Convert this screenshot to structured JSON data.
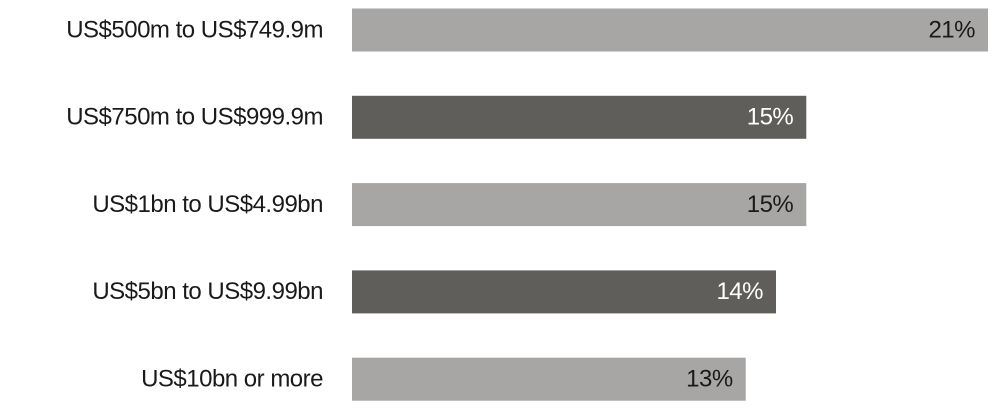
{
  "chart_data": {
    "type": "barh",
    "categories": [
      "US$500m to US$749.9m",
      "US$750m to US$999.9m",
      "US$1bn to US$4.99bn",
      "US$5bn to US$9.99bn",
      "US$10bn or more"
    ],
    "values": [
      21,
      15,
      15,
      14,
      13
    ],
    "value_labels": [
      "21%",
      "15%",
      "15%",
      "14%",
      "13%"
    ],
    "colors": [
      "#a7a6a4",
      "#5f5e5a",
      "#a7a6a4",
      "#5f5e5a",
      "#a7a6a4"
    ],
    "label_colors": [
      "#1a1a1a",
      "#ffffff",
      "#1a1a1a",
      "#ffffff",
      "#1a1a1a"
    ]
  }
}
